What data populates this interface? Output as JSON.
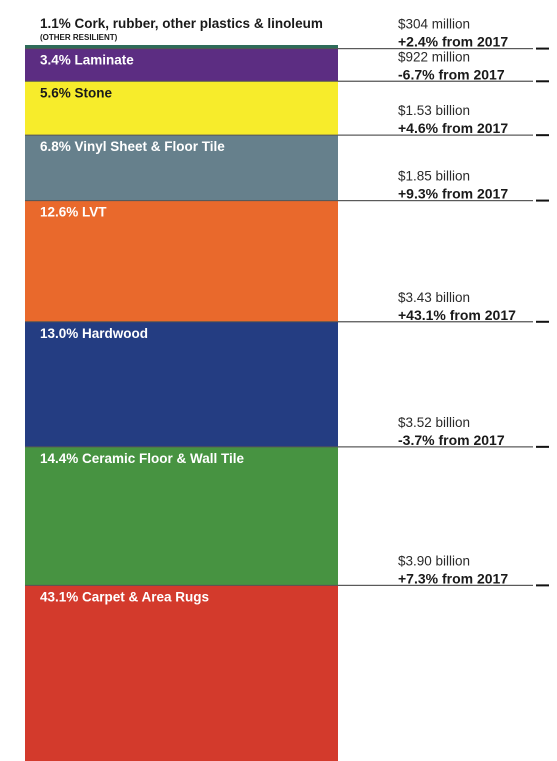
{
  "chart_data": {
    "type": "bar",
    "subtype": "stacked-single-column",
    "categories": [
      "Cork, rubber, other plastics & linoleum",
      "Laminate",
      "Stone",
      "Vinyl Sheet & Floor Tile",
      "LVT",
      "Hardwood",
      "Ceramic Floor & Wall Tile",
      "Carpet & Area Rugs"
    ],
    "segments": [
      {
        "label": "1.1% Cork, rubber, other plastics & linoleum",
        "sublabel": "(OTHER RESILIENT)",
        "share": 1.1,
        "color": "#2e6b5a",
        "label_color": "#1a1a1a",
        "value_text": "$304 million",
        "value_usd_millions": 304,
        "change_text": "+2.4% from 2017",
        "change_pct": 2.4
      },
      {
        "label": "3.4% Laminate",
        "share": 3.4,
        "color": "#5c2d82",
        "label_color": "#ffffff",
        "value_text": "$922 million",
        "value_usd_millions": 922,
        "change_text": "-6.7% from 2017",
        "change_pct": -6.7
      },
      {
        "label": "5.6% Stone",
        "share": 5.6,
        "color": "#f7ec2b",
        "label_color": "#1a1a1a",
        "value_text": "$1.53 billion",
        "value_usd_millions": 1530,
        "change_text": "+4.6% from 2017",
        "change_pct": 4.6
      },
      {
        "label": "6.8% Vinyl Sheet & Floor Tile",
        "share": 6.8,
        "color": "#66808c",
        "label_color": "#ffffff",
        "value_text": "$1.85 billion",
        "value_usd_millions": 1850,
        "change_text": "+9.3% from 2017",
        "change_pct": 9.3
      },
      {
        "label": "12.6% LVT",
        "share": 12.6,
        "color": "#e9692c",
        "label_color": "#ffffff",
        "value_text": "$3.43 billion",
        "value_usd_millions": 3430,
        "change_text": "+43.1% from 2017",
        "change_pct": 43.1
      },
      {
        "label": "13.0% Hardwood",
        "share": 13.0,
        "color": "#243d82",
        "label_color": "#ffffff",
        "value_text": "$3.52 billion",
        "value_usd_millions": 3520,
        "change_text": "-3.7% from 2017",
        "change_pct": -3.7
      },
      {
        "label": "14.4% Ceramic Floor & Wall Tile",
        "share": 14.4,
        "color": "#479341",
        "label_color": "#ffffff",
        "value_text": "$3.90 billion",
        "value_usd_millions": 3900,
        "change_text": "+7.3% from 2017",
        "change_pct": 7.3
      },
      {
        "label": "43.1% Carpet & Area Rugs",
        "share": 43.1,
        "color": "#d33a2c",
        "label_color": "#ffffff",
        "value_text": "",
        "change_text": ""
      }
    ]
  }
}
